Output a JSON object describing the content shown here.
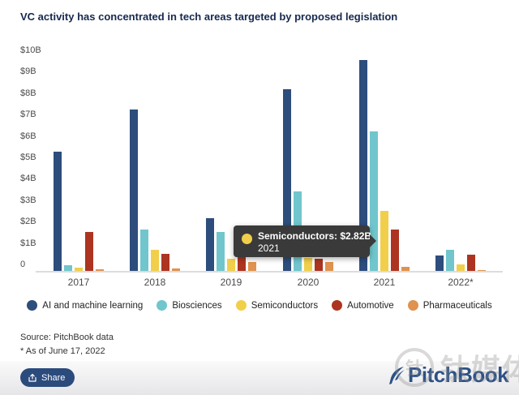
{
  "title": "VC activity has concentrated in tech areas targeted by proposed legislation",
  "chart_data": {
    "type": "bar",
    "categories": [
      "2017",
      "2018",
      "2019",
      "2020",
      "2021",
      "2022*"
    ],
    "series": [
      {
        "name": "AI and machine learning",
        "color": "#2d4d7c",
        "values": [
          5.55,
          7.55,
          2.45,
          8.5,
          9.85,
          0.72
        ]
      },
      {
        "name": "Biosciences",
        "color": "#70c6cc",
        "values": [
          0.28,
          1.95,
          1.8,
          3.7,
          6.5,
          1.0
        ]
      },
      {
        "name": "Semiconductors",
        "color": "#f1cf4a",
        "values": [
          0.15,
          1.0,
          0.57,
          0.62,
          2.82,
          0.32
        ]
      },
      {
        "name": "Automotive",
        "color": "#ad3420",
        "values": [
          1.8,
          0.8,
          0.75,
          0.58,
          1.95,
          0.75
        ]
      },
      {
        "name": "Pharmaceuticals",
        "color": "#e0924e",
        "values": [
          0.07,
          0.12,
          0.42,
          0.42,
          0.2,
          0.02
        ]
      }
    ],
    "title": "VC activity has concentrated in tech areas targeted by proposed legislation",
    "xlabel": "",
    "ylabel": "",
    "ylim": [
      0,
      10
    ],
    "ytick_labels": [
      "$10B",
      "$9B",
      "$8B",
      "$7B",
      "$6B",
      "$5B",
      "$4B",
      "$3B",
      "$2B",
      "$1B",
      "0"
    ],
    "grid": false,
    "legend_position": "bottom"
  },
  "tooltip": {
    "line1": "Semiconductors: $2.82B",
    "line2": "2021",
    "dot_color": "#f1cf4a"
  },
  "source": {
    "line1": "Source: PitchBook data",
    "line2": "* As of June 17, 2022"
  },
  "share": {
    "label": "Share"
  },
  "logo": {
    "text": "PitchBook"
  },
  "watermark": {
    "ring_char": "钛",
    "text": "钛媒体"
  },
  "colors": {
    "title_text": "#16294e",
    "tooltip_bg": "#3a3a3a",
    "share_bg": "#2b4b7d",
    "logo_blue": "#2d5186",
    "baseline": "#dcdcdc"
  }
}
